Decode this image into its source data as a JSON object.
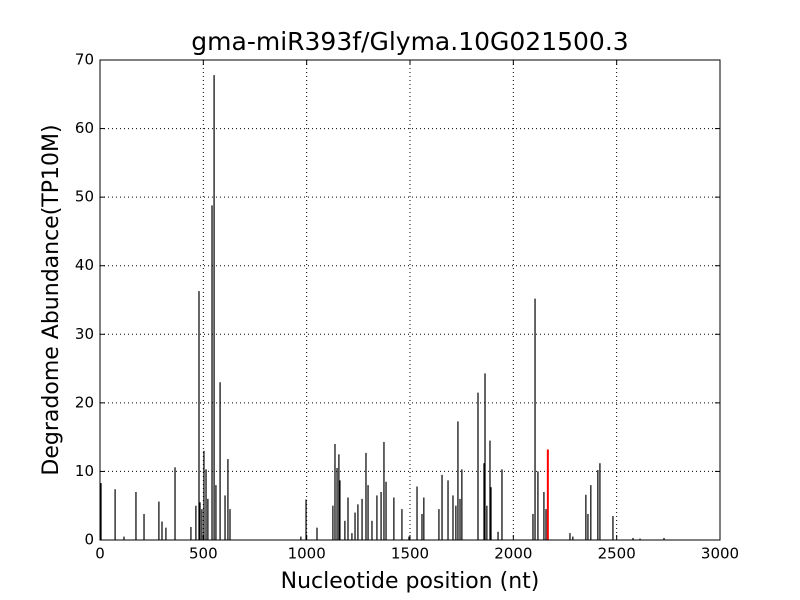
{
  "chart_data": {
    "type": "vlines",
    "title": "gma-miR393f/Glyma.10G021500.3",
    "xlabel": "Nucleotide position (nt)",
    "ylabel": "Degradome Abundance(TP10M)",
    "xlim": [
      0,
      3000
    ],
    "xticks": [
      0,
      500,
      1000,
      1500,
      2000,
      2500,
      3000
    ],
    "ylim": [
      0,
      70
    ],
    "yticks": [
      0,
      10,
      20,
      30,
      40,
      50,
      60,
      70
    ],
    "grid": true,
    "series": [
      {
        "color": "#000000",
        "x": [
          5,
          73,
          116,
          174,
          213,
          285,
          300,
          319,
          363,
          440,
          464,
          479,
          484,
          493,
          503,
          513,
          522,
          542,
          552,
          561,
          581,
          605,
          619,
          629,
          972,
          997,
          1050,
          1127,
          1137,
          1147,
          1156,
          1161,
          1185,
          1200,
          1219,
          1234,
          1248,
          1268,
          1287,
          1297,
          1316,
          1340,
          1360,
          1374,
          1384,
          1422,
          1461,
          1495,
          1534,
          1558,
          1567,
          1640,
          1655,
          1684,
          1708,
          1722,
          1732,
          1742,
          1751,
          1829,
          1858,
          1863,
          1872,
          1887,
          1892,
          1926,
          1945,
          2095,
          2105,
          2119,
          2148,
          2158,
          2274,
          2288,
          2351,
          2361,
          2375,
          2409,
          2419,
          2482,
          2579,
          2613,
          2729
        ],
        "values": [
          8.3,
          7.4,
          0.5,
          7,
          3.8,
          5.6,
          2.7,
          1.8,
          10.6,
          1.9,
          5,
          36.3,
          5.5,
          4.5,
          13,
          10.3,
          6,
          48.8,
          67.8,
          8,
          23,
          6.5,
          11.8,
          4.5,
          0.5,
          5.9,
          1.8,
          5,
          14,
          10.5,
          12.5,
          8.7,
          2.8,
          6.2,
          1,
          4,
          5.2,
          6,
          12.7,
          8,
          2.8,
          6.5,
          7,
          14.3,
          8.5,
          6.2,
          4.5,
          0.5,
          7.8,
          3.8,
          6.2,
          4.5,
          9.5,
          8.7,
          6.5,
          5,
          17.3,
          6,
          10.3,
          21.5,
          11.2,
          24.3,
          5,
          14.5,
          7.7,
          1.2,
          10.3,
          3.8,
          35.2,
          10,
          7,
          4.5,
          1,
          0.5,
          6.6,
          3.8,
          8,
          10.2,
          11.2,
          3.5,
          0.3,
          0.2,
          0.3
        ]
      },
      {
        "color": "#ff0000",
        "x": [
          2167
        ],
        "values": [
          13.2
        ]
      }
    ]
  }
}
